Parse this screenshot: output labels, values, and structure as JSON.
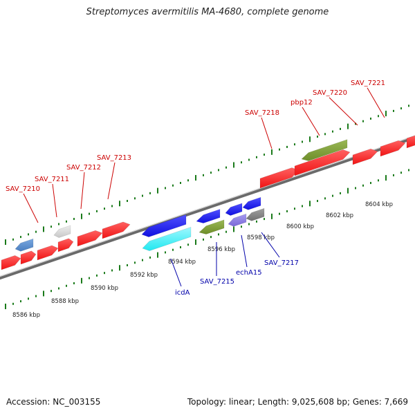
{
  "header": {
    "title": "Streptomyces avermitilis MA-4680, complete genome"
  },
  "footer": {
    "accession": "Accession: NC_003155",
    "summary": "Topology: linear; Length: 9,025,608 bp; Genes: 7,669"
  },
  "colors": {
    "cds_red": "#f01414",
    "cds_blue": "#1010e0",
    "cyan": "#20e8f0",
    "olive": "#6e8e2a",
    "steel": "#4a7ec0",
    "gray": "#c8c8c8",
    "dark_gray": "#707070",
    "lavender": "#7a6ad8",
    "tick": "#1a7a1a",
    "label_red": "#cc0000",
    "label_blue": "#0000aa"
  },
  "scale_labels": [
    "8586 kbp",
    "8588 kbp",
    "8590 kbp",
    "8592 kbp",
    "8594 kbp",
    "8596 kbp",
    "8598 kbp",
    "8600 kbp",
    "8602 kbp",
    "8604 kbp"
  ],
  "forward_gene_labels": [
    "SAV_7210",
    "SAV_7211",
    "SAV_7212",
    "SAV_7213",
    "SAV_7218",
    "pbp12",
    "SAV_7220",
    "SAV_7221"
  ],
  "reverse_gene_labels": [
    "icdA",
    "SAV_7215",
    "echA15",
    "SAV_7217"
  ]
}
